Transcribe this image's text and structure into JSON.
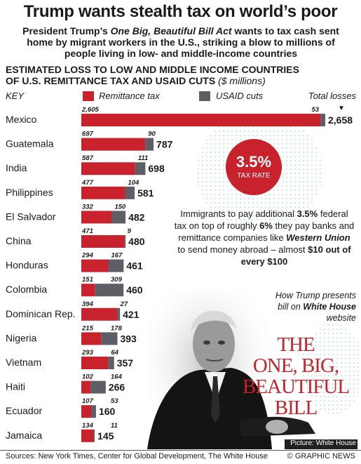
{
  "header": {
    "title": "Trump wants stealth tax on world’s poor",
    "subtitle_pre": "President Trump’s ",
    "subtitle_em": "One Big, Beautiful Bill Act",
    "subtitle_post": " wants to tax cash sent home by migrant workers in the U.S., striking a blow to millions of people living in low- and middle-income countries"
  },
  "key": {
    "label": "KEY",
    "remittance": "Remittance tax",
    "usaid": "USAID cuts",
    "total": "Total losses"
  },
  "colors": {
    "remittance": "#c8232c",
    "usaid": "#5e5e66",
    "accent": "#c8232c"
  },
  "badge": {
    "value": "3.5%",
    "caption": "TAX RATE"
  },
  "note": {
    "p1": "Immigrants to pay additional ",
    "b1": "3.5%",
    "p2": " federal tax on top of roughly ",
    "b2": "6%",
    "p3": " they pay banks and remittance companies like ",
    "b3": "Western Union",
    "p4": " to send money abroad – almost ",
    "b4": "$10 out of every $100"
  },
  "presents": {
    "line1": "How Trump presents",
    "line2_pre": "bill on ",
    "line2_b": "White House",
    "line3": "website"
  },
  "bill_banner": {
    "l1": "THE",
    "l2": "ONE, BIG,",
    "l3": "BEAUTIFUL",
    "l4": "BILL"
  },
  "photo_credit": "Picture: White House",
  "footer": {
    "sources": "Sources: New York Times, Center for Global Development, The White House",
    "credit": "© GRAPHIC NEWS"
  },
  "chart_data": {
    "type": "bar",
    "stacked": true,
    "orientation": "horizontal",
    "title": "ESTIMATED LOSS TO LOW AND MIDDLE INCOME COUNTRIES OF U.S. REMITTANCE TAX AND USAID CUTS",
    "unit": "($ millions)",
    "categories": [
      "Mexico",
      "Guatemala",
      "India",
      "Philippines",
      "El Salvador",
      "China",
      "Honduras",
      "Colombia",
      "Dominican Rep.",
      "Nigeria",
      "Vietnam",
      "Haiti",
      "Ecuador",
      "Jamaica"
    ],
    "series": [
      {
        "name": "Remittance tax",
        "values": [
          2605,
          697,
          587,
          477,
          332,
          471,
          294,
          151,
          394,
          215,
          293,
          102,
          107,
          134
        ]
      },
      {
        "name": "USAID cuts",
        "values": [
          53,
          90,
          111,
          104,
          150,
          9,
          167,
          309,
          27,
          178,
          64,
          164,
          53,
          11
        ]
      }
    ],
    "totals_label": "Total losses",
    "totals": [
      2658,
      787,
      698,
      581,
      482,
      480,
      461,
      460,
      421,
      393,
      357,
      266,
      160,
      145
    ],
    "xlim": [
      0,
      2658
    ]
  }
}
